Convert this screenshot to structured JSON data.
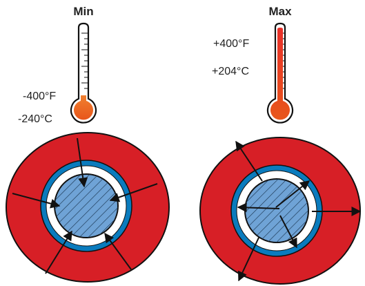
{
  "min": {
    "heading": "Min",
    "fahrenheit": "-400°F",
    "celsius": "-240°C"
  },
  "max": {
    "heading": "Max",
    "fahrenheit": "+400°F",
    "celsius": "+204°C"
  },
  "colors": {
    "outer_jacket": "#d71f26",
    "blue_ring": "#0a7bbd",
    "core": "#6fa3d6",
    "mercury_min": "#e8561b",
    "mercury_max": "#d71f26",
    "outline": "#111111"
  },
  "icons": {
    "min_thermometer": "thermometer-low-icon",
    "max_thermometer": "thermometer-high-icon",
    "arrow": "arrow-icon"
  }
}
